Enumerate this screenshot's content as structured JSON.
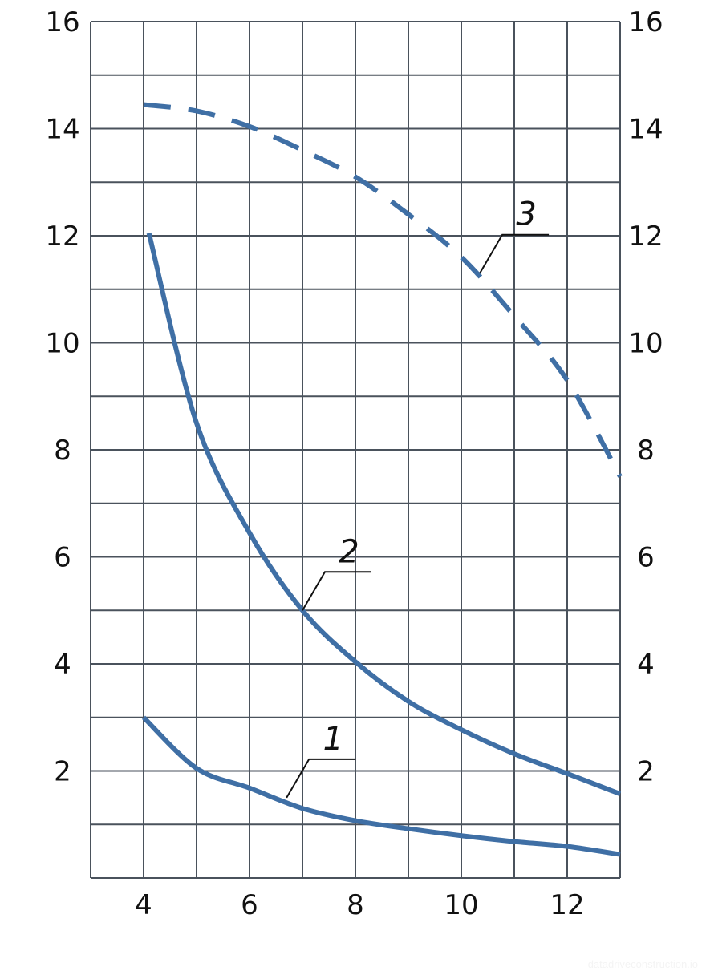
{
  "chart_data": {
    "type": "line",
    "title": "",
    "xlabel": "",
    "ylabel": "",
    "xlim": [
      3,
      13
    ],
    "ylim": [
      0,
      16
    ],
    "x_ticks": [
      4,
      6,
      8,
      10,
      12
    ],
    "y_ticks": [
      2,
      4,
      6,
      8,
      10,
      12,
      14,
      16
    ],
    "y_ticks_right": [
      2,
      4,
      6,
      8,
      10,
      12,
      14,
      16
    ],
    "grid": true,
    "grid_step": {
      "x": 1,
      "y": 1
    },
    "line_color": "#3f6fa5",
    "series": [
      {
        "name": "1",
        "style": "solid",
        "x": [
          4,
          5,
          6,
          7,
          8,
          9,
          10,
          11,
          12,
          13
        ],
        "y": [
          3.0,
          2.05,
          1.68,
          1.3,
          1.07,
          0.92,
          0.79,
          0.68,
          0.59,
          0.44
        ]
      },
      {
        "name": "2",
        "style": "solid",
        "x": [
          4.1,
          5,
          6,
          7,
          8,
          9,
          10,
          11,
          12,
          13
        ],
        "y": [
          12.05,
          8.5,
          6.45,
          5.0,
          4.04,
          3.3,
          2.77,
          2.32,
          1.95,
          1.57
        ]
      },
      {
        "name": "3",
        "style": "dashed",
        "x": [
          4,
          5,
          6,
          7,
          8,
          9,
          10,
          11,
          12,
          13
        ],
        "y": [
          14.45,
          14.33,
          14.04,
          13.6,
          13.1,
          12.4,
          11.6,
          10.5,
          9.3,
          7.5
        ]
      }
    ],
    "annotations": [
      {
        "text": "1",
        "points_to": [
          6.7,
          1.5
        ]
      },
      {
        "text": "2",
        "points_to": [
          7.0,
          5.0
        ]
      },
      {
        "text": "3",
        "points_to": [
          10.35,
          11.3
        ]
      }
    ]
  },
  "watermark": "datadriveconstruction.io"
}
